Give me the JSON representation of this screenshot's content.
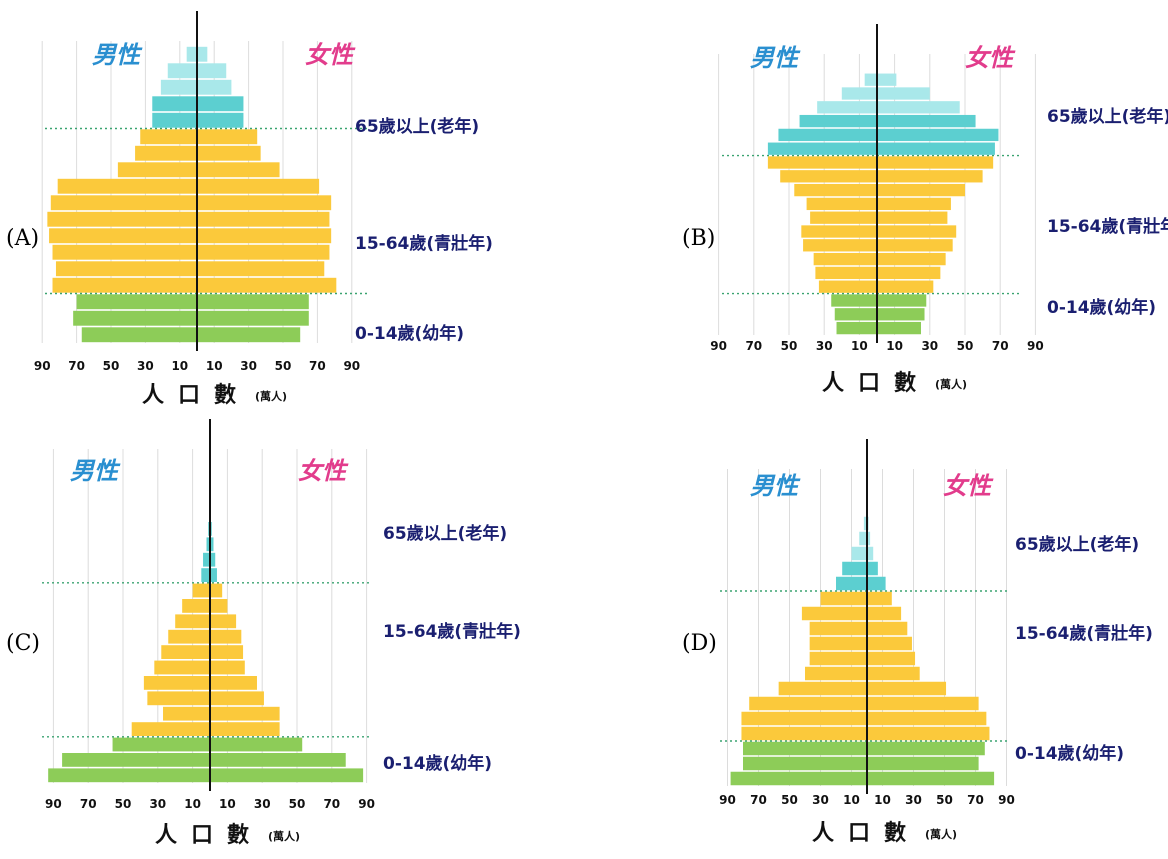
{
  "option_labels": [
    "(A)",
    "(B)",
    "(C)",
    "(D)"
  ],
  "colors": {
    "elderly": "#5ccfd0",
    "elderly_top": "#a9e8ea",
    "working": "#fbc93b",
    "youth": "#8dcc58",
    "grid": "#dcdcdc",
    "separator": "#3aa370",
    "male_text": "#2a8fd0",
    "female_text": "#e23c8c",
    "label_text": "#1a1f70"
  },
  "chart_data": [
    {
      "type": "bar",
      "subtype": "population-pyramid",
      "option": "(A)",
      "male_label": "男性",
      "female_label": "女性",
      "group_labels": [
        "65歲以上(老年)",
        "15-64歲(青壯年)",
        "0-14歲(幼年)"
      ],
      "xlabel": "人口數",
      "xunit": "(萬人)",
      "x_ticks": [
        "90",
        "70",
        "50",
        "30",
        "10",
        "10",
        "30",
        "50",
        "70",
        "90"
      ],
      "xlim": [
        0,
        100
      ],
      "age_groups_bottom_to_top": [
        "y",
        "y",
        "y",
        "w",
        "w",
        "w",
        "w",
        "w",
        "w",
        "w",
        "w",
        "w",
        "w",
        "e",
        "e",
        "e",
        "e",
        "e"
      ],
      "male": [
        67,
        72,
        70,
        84,
        82,
        84,
        86,
        87,
        85,
        81,
        46,
        36,
        33,
        26,
        26,
        21,
        17,
        6
      ],
      "female": [
        60,
        65,
        65,
        81,
        74,
        77,
        78,
        77,
        78,
        71,
        48,
        37,
        35,
        27,
        27,
        20,
        17,
        6
      ]
    },
    {
      "type": "bar",
      "subtype": "population-pyramid",
      "option": "(B)",
      "male_label": "男性",
      "female_label": "女性",
      "group_labels": [
        "65歲以上(老年)",
        "15-64歲(青壯年)",
        "0-14歲(幼年)"
      ],
      "xlabel": "人口數",
      "xunit": "(萬人)",
      "x_ticks": [
        "90",
        "70",
        "50",
        "30",
        "10",
        "10",
        "30",
        "50",
        "70",
        "90"
      ],
      "xlim": [
        0,
        100
      ],
      "age_groups_bottom_to_top": [
        "y",
        "y",
        "y",
        "w",
        "w",
        "w",
        "w",
        "w",
        "w",
        "w",
        "w",
        "w",
        "w",
        "e",
        "e",
        "e",
        "e",
        "e",
        "e"
      ],
      "male": [
        23,
        24,
        26,
        33,
        35,
        36,
        42,
        43,
        38,
        40,
        47,
        55,
        62,
        62,
        56,
        44,
        34,
        20,
        7
      ],
      "female": [
        25,
        27,
        28,
        32,
        36,
        39,
        43,
        45,
        40,
        42,
        50,
        60,
        66,
        67,
        69,
        56,
        47,
        30,
        11
      ]
    },
    {
      "type": "bar",
      "subtype": "population-pyramid",
      "option": "(C)",
      "male_label": "男性",
      "female_label": "女性",
      "group_labels": [
        "65歲以上(老年)",
        "15-64歲(青壯年)",
        "0-14歲(幼年)"
      ],
      "xlabel": "人口數",
      "xunit": "(萬人)",
      "x_ticks": [
        "90",
        "70",
        "50",
        "30",
        "10",
        "10",
        "30",
        "50",
        "70",
        "90"
      ],
      "xlim": [
        0,
        100
      ],
      "age_groups_bottom_to_top": [
        "y",
        "y",
        "y",
        "w",
        "w",
        "w",
        "w",
        "w",
        "w",
        "w",
        "w",
        "w",
        "w",
        "e",
        "e",
        "e",
        "e"
      ],
      "male": [
        93,
        85,
        56,
        45,
        27,
        36,
        38,
        32,
        28,
        24,
        20,
        16,
        10,
        5,
        4,
        2,
        1
      ],
      "female": [
        88,
        78,
        53,
        40,
        40,
        31,
        27,
        20,
        19,
        18,
        15,
        10,
        7,
        4,
        3,
        2,
        1
      ]
    },
    {
      "type": "bar",
      "subtype": "population-pyramid",
      "option": "(D)",
      "male_label": "男性",
      "female_label": "女性",
      "group_labels": [
        "65歲以上(老年)",
        "15-64歲(青壯年)",
        "0-14歲(幼年)"
      ],
      "xlabel": "人口數",
      "xunit": "(萬人)",
      "x_ticks": [
        "90",
        "70",
        "50",
        "30",
        "10",
        "10",
        "30",
        "50",
        "70",
        "90"
      ],
      "xlim": [
        0,
        100
      ],
      "age_groups_bottom_to_top": [
        "y",
        "y",
        "y",
        "w",
        "w",
        "w",
        "w",
        "w",
        "w",
        "w",
        "w",
        "w",
        "w",
        "e",
        "e",
        "e",
        "e",
        "e"
      ],
      "male": [
        88,
        80,
        80,
        81,
        81,
        76,
        57,
        40,
        37,
        37,
        37,
        42,
        30,
        20,
        16,
        10,
        5,
        2
      ],
      "female": [
        82,
        72,
        76,
        79,
        77,
        72,
        51,
        34,
        31,
        29,
        26,
        22,
        16,
        12,
        7,
        4,
        2,
        1
      ]
    }
  ]
}
